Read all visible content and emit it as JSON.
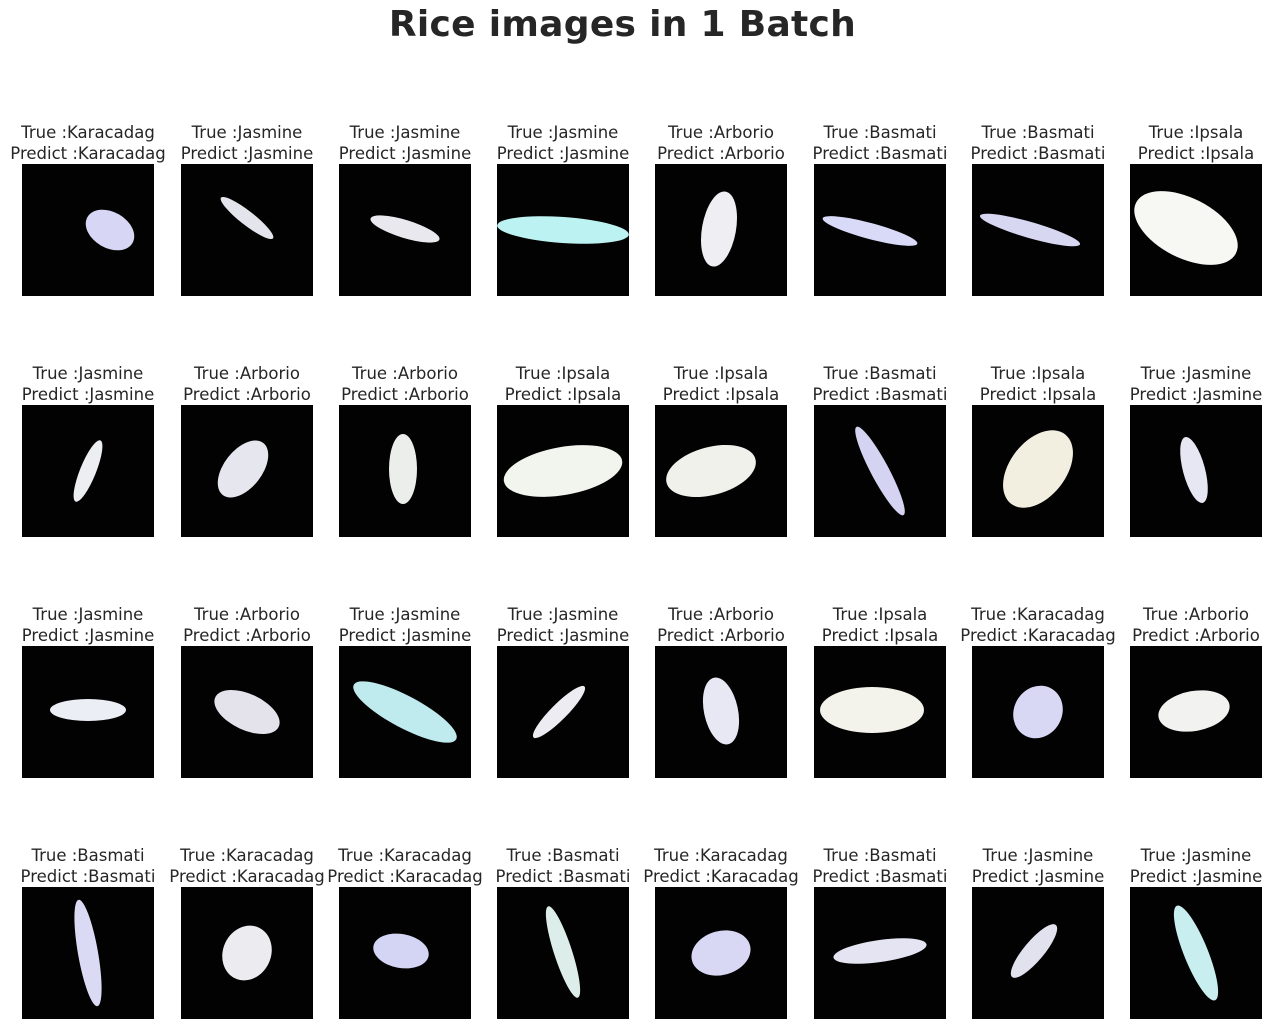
{
  "figure": {
    "title": "Rice images in 1 Batch"
  },
  "colors": {
    "background": "#ffffff",
    "text": "#262626",
    "image_background": "#020202"
  },
  "grid": [
    [
      {
        "true_label": "True :Karacadag",
        "pred_label": "Predict :Karacadag"
      },
      {
        "true_label": "True :Jasmine",
        "pred_label": "Predict :Jasmine"
      },
      {
        "true_label": "True :Jasmine",
        "pred_label": "Predict :Jasmine"
      },
      {
        "true_label": "True :Jasmine",
        "pred_label": "Predict :Jasmine"
      },
      {
        "true_label": "True :Arborio",
        "pred_label": "Predict :Arborio"
      },
      {
        "true_label": "True :Basmati",
        "pred_label": "Predict :Basmati"
      },
      {
        "true_label": "True :Basmati",
        "pred_label": "Predict :Basmati"
      },
      {
        "true_label": "True :Ipsala",
        "pred_label": "Predict :Ipsala"
      }
    ],
    [
      {
        "true_label": "True :Jasmine",
        "pred_label": "Predict :Jasmine"
      },
      {
        "true_label": "True :Arborio",
        "pred_label": "Predict :Arborio"
      },
      {
        "true_label": "True :Arborio",
        "pred_label": "Predict :Arborio"
      },
      {
        "true_label": "True :Ipsala",
        "pred_label": "Predict :Ipsala"
      },
      {
        "true_label": "True :Ipsala",
        "pred_label": "Predict :Ipsala"
      },
      {
        "true_label": "True :Basmati",
        "pred_label": "Predict :Basmati"
      },
      {
        "true_label": "True :Ipsala",
        "pred_label": "Predict :Ipsala"
      },
      {
        "true_label": "True :Jasmine",
        "pred_label": "Predict :Jasmine"
      }
    ],
    [
      {
        "true_label": "True :Jasmine",
        "pred_label": "Predict :Jasmine"
      },
      {
        "true_label": "True :Arborio",
        "pred_label": "Predict :Arborio"
      },
      {
        "true_label": "True :Jasmine",
        "pred_label": "Predict :Jasmine"
      },
      {
        "true_label": "True :Jasmine",
        "pred_label": "Predict :Jasmine"
      },
      {
        "true_label": "True :Arborio",
        "pred_label": "Predict :Arborio"
      },
      {
        "true_label": "True :Ipsala",
        "pred_label": "Predict :Ipsala"
      },
      {
        "true_label": "True :Karacadag",
        "pred_label": "Predict :Karacadag"
      },
      {
        "true_label": "True :Arborio",
        "pred_label": "Predict :Arborio"
      }
    ],
    [
      {
        "true_label": "True :Basmati",
        "pred_label": "Predict :Basmati"
      },
      {
        "true_label": "True :Karacadag",
        "pred_label": "Predict :Karacadag"
      },
      {
        "true_label": "True :Karacadag",
        "pred_label": "Predict :Karacadag"
      },
      {
        "true_label": "True :Basmati",
        "pred_label": "Predict :Basmati"
      },
      {
        "true_label": "True :Karacadag",
        "pred_label": "Predict :Karacadag"
      },
      {
        "true_label": "True :Basmati",
        "pred_label": "Predict :Basmati"
      },
      {
        "true_label": "True :Jasmine",
        "pred_label": "Predict :Jasmine"
      },
      {
        "true_label": "True :Jasmine",
        "pred_label": "Predict :Jasmine"
      }
    ]
  ]
}
